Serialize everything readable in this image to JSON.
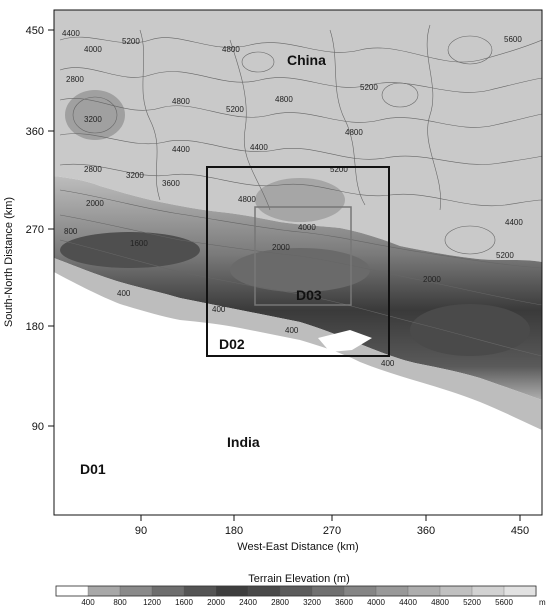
{
  "map": {
    "xlabel": "West-East Distance (km)",
    "ylabel": "South-North Distance (km)",
    "x_ticks": [
      "90",
      "180",
      "270",
      "360",
      "450"
    ],
    "y_ticks": [
      "450",
      "360",
      "270",
      "180",
      "90"
    ],
    "regions": {
      "china": "China",
      "india": "India"
    },
    "domains": {
      "d01": "D01",
      "d02": "D02",
      "d03": "D03"
    },
    "contour_labels": [
      "4400",
      "4000",
      "5200",
      "4800",
      "5600",
      "2800",
      "3200",
      "4800",
      "5200",
      "4800",
      "5200",
      "4800",
      "4400",
      "3600",
      "2800",
      "3200",
      "2000",
      "4800",
      "5200",
      "4400",
      "4400",
      "5200",
      "1600",
      "800",
      "2000",
      "4000",
      "400",
      "400",
      "400",
      "400",
      "2000"
    ]
  },
  "legend": {
    "title": "Terrain Elevation (m)",
    "unit": "m",
    "levels": [
      "400",
      "800",
      "1200",
      "1600",
      "2000",
      "2400",
      "2800",
      "3200",
      "3600",
      "4000",
      "4400",
      "4800",
      "5200",
      "5600"
    ],
    "colors": [
      "#ffffff",
      "#a8a8a8",
      "#8a8a8a",
      "#6e6e6e",
      "#545454",
      "#3e3e3e",
      "#4a4a4a",
      "#5c5c5c",
      "#707070",
      "#858585",
      "#999999",
      "#adadad",
      "#c0c0c0",
      "#d2d2d2",
      "#e2e2e2"
    ]
  }
}
